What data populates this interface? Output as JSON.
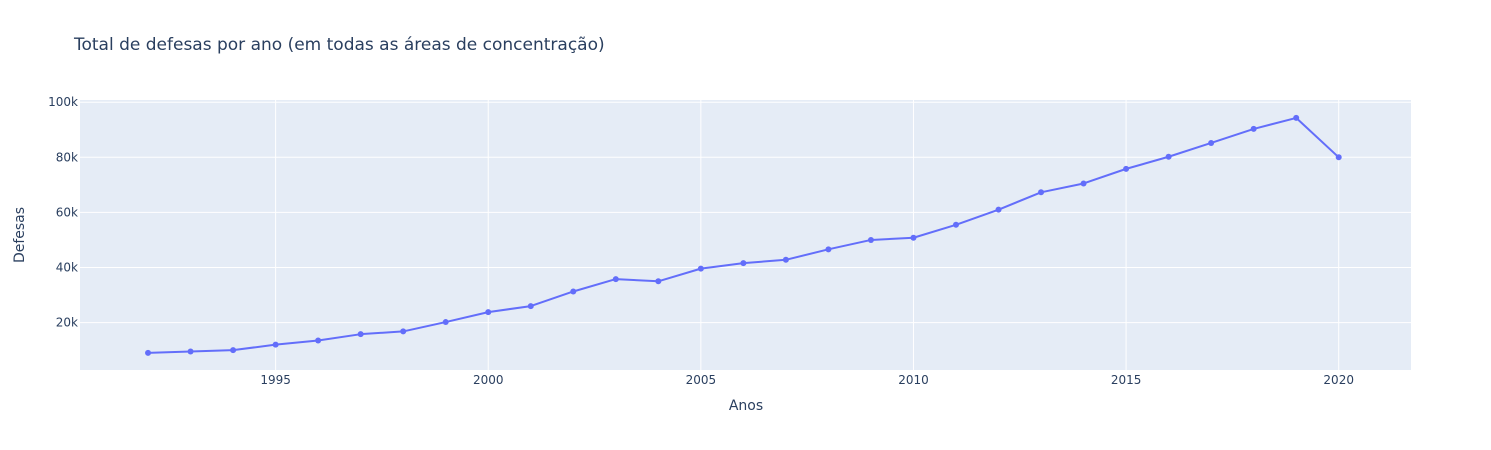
{
  "chart_data": {
    "type": "line",
    "title": "Total de defesas por ano (em todas as áreas de concentração)",
    "xlabel": "Anos",
    "ylabel": "Defesas",
    "xlim": [
      1990.4,
      2021.7
    ],
    "ylim": [
      2800,
      100800
    ],
    "x_ticks": [
      1995,
      2000,
      2005,
      2010,
      2015,
      2020
    ],
    "y_ticks": [
      20000,
      40000,
      60000,
      80000,
      100000
    ],
    "y_tick_labels": [
      "20k",
      "40k",
      "60k",
      "80k",
      "100k"
    ],
    "grid": true,
    "colors": {
      "line": "#636efa",
      "plot_bg": "#e5ecf6",
      "grid": "#ffffff",
      "text": "#2a3f5f"
    },
    "series": [
      {
        "x": [
          1992,
          1993,
          1994,
          1995,
          1996,
          1997,
          1998,
          1999,
          2000,
          2001,
          2002,
          2003,
          2004,
          2005,
          2006,
          2007,
          2008,
          2009,
          2010,
          2011,
          2012,
          2013,
          2014,
          2015,
          2016,
          2017,
          2018,
          2019,
          2020
        ],
        "y": [
          9000,
          9500,
          10000,
          12000,
          13500,
          15800,
          16800,
          20200,
          23800,
          26000,
          31300,
          35800,
          35000,
          39600,
          41600,
          42800,
          46600,
          50000,
          50800,
          55500,
          61000,
          67300,
          70500,
          75800,
          80200,
          85200,
          90300,
          94300,
          80000
        ]
      }
    ]
  }
}
